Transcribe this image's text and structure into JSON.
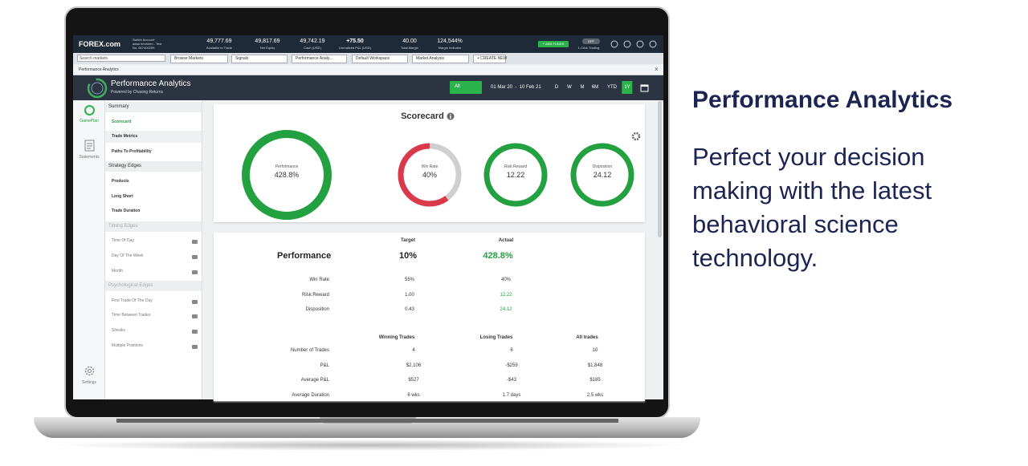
{
  "headline": {
    "title": "Performance Analytics",
    "body": "Perfect your decision making with the latest behavioral science technology."
  },
  "topbar": {
    "logo": "FOREX.com",
    "account": [
      "Switch Account",
      "aaaa hmmmm - Test",
      "No. 007400259"
    ],
    "stats": [
      {
        "value": "49,777.69",
        "label": "Available to Trade"
      },
      {
        "value": "49,817.69",
        "label": "Net Equity"
      },
      {
        "value": "49,742.19",
        "label": "Cash (USD)"
      },
      {
        "value": "+75.50",
        "label": "Unrealized P&L (USD)"
      },
      {
        "value": "40.00",
        "label": "Total Margin"
      },
      {
        "value": "124,544%",
        "label": "Margin Indicator"
      }
    ],
    "add_funds": "+ ADD FUNDS",
    "toggle": "OFF",
    "toggle_label": "1-Click Trading"
  },
  "tabs": {
    "search": "Search markets",
    "items": [
      "Browse Markets",
      "Signals",
      "Performance Analy...",
      "Default Workspace",
      "Market Analysis",
      "+ CREATE NEW"
    ]
  },
  "panel_tab": "Performance Analytics",
  "app_header": {
    "title": "Performance Analytics",
    "subtitle": "Powered by Chasing Returns",
    "filter": "All",
    "date_range": "01 Mar 20  -  10 Feb 21",
    "periods": [
      "D",
      "W",
      "M",
      "6M",
      "YTD",
      "1Y"
    ]
  },
  "rail": [
    "GamePlan",
    "Statements",
    "Settings"
  ],
  "sidebar": [
    {
      "label": "Summary",
      "header": true
    },
    {
      "label": "Scorecard",
      "active": true
    },
    {
      "label": "Trade Metrics"
    },
    {
      "label": "Paths To Profitability"
    },
    {
      "label": "Strategy Edges",
      "header": true
    },
    {
      "label": "Products"
    },
    {
      "label": "Long Short"
    },
    {
      "label": "Trade Duration"
    },
    {
      "label": "Timing Edges",
      "header": true,
      "muted": true
    },
    {
      "label": "Time Of Day",
      "locked": true
    },
    {
      "label": "Day Of The Week",
      "locked": true
    },
    {
      "label": "Month",
      "locked": true
    },
    {
      "label": "Psychological Edges",
      "header": true,
      "muted": true
    },
    {
      "label": "First Trade Of The Day",
      "locked": true
    },
    {
      "label": "Time Between Trades",
      "locked": true
    },
    {
      "label": "Streaks",
      "locked": true
    },
    {
      "label": "Multiple Positions",
      "locked": true
    }
  ],
  "scorecard": {
    "title": "Scorecard",
    "gauges": [
      {
        "label": "Performance",
        "value": "428.8%"
      },
      {
        "label": "Win Rate",
        "value": "40%"
      },
      {
        "label": "Risk:Reward",
        "value": "12.22"
      },
      {
        "label": "Disposition",
        "value": "24.12"
      }
    ]
  },
  "perf_table": {
    "headers": [
      "Target",
      "Actual"
    ],
    "title_row": [
      "Performance",
      "10%",
      "428.8%"
    ],
    "rows": [
      [
        "Win Rate",
        "55%",
        "40%"
      ],
      [
        "Risk:Reward",
        "1.00",
        "12.22"
      ],
      [
        "Disposition",
        "0.43",
        "24.12"
      ]
    ]
  },
  "trades_table": {
    "headers": [
      "Winning Trades",
      "Losing Trades",
      "All trades"
    ],
    "rows": [
      [
        "Number of Trades",
        "4",
        "6",
        "10"
      ],
      [
        "P&L",
        "$2,106",
        "-$259",
        "$1,848"
      ],
      [
        "Average P&L",
        "$527",
        "-$43",
        "$185"
      ],
      [
        "Average Duration",
        "6 wks",
        "1.7 days",
        "2.5 wks"
      ]
    ]
  }
}
